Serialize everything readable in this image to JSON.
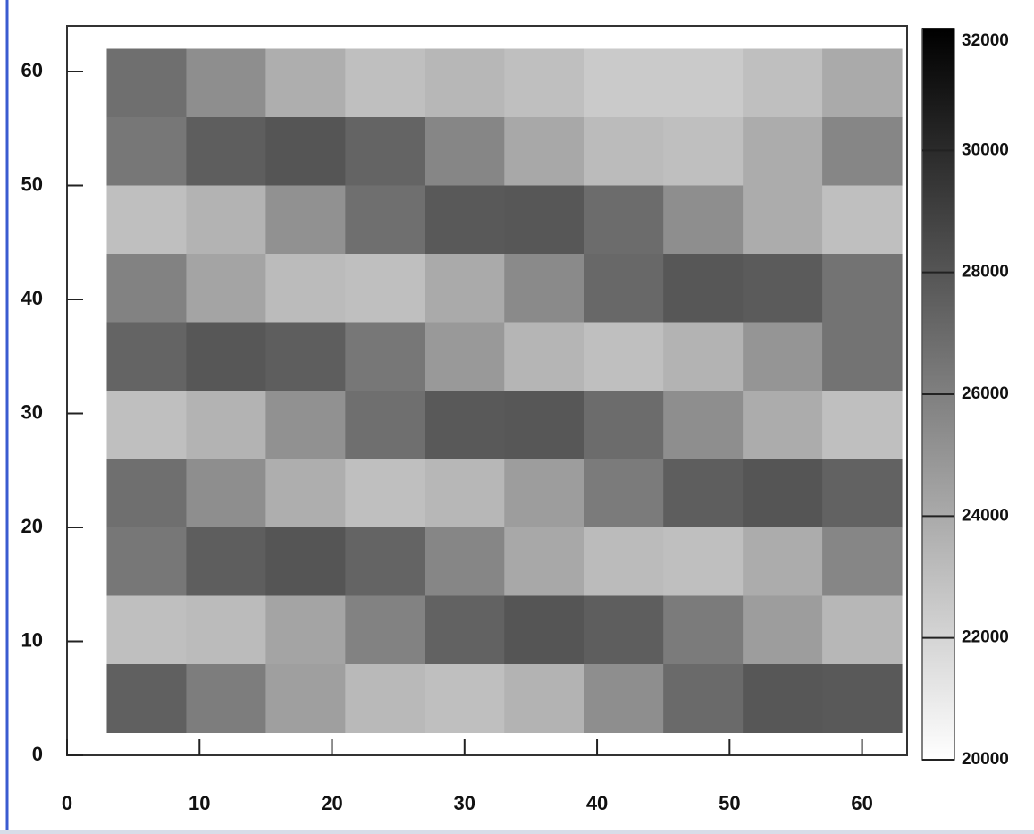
{
  "chart_data": {
    "type": "heatmap",
    "x": [
      6,
      12,
      18,
      24,
      30,
      36,
      42,
      48,
      54,
      60
    ],
    "y": [
      59,
      53,
      47,
      41,
      35,
      29,
      23,
      17,
      11,
      5
    ],
    "cell_size": 6,
    "values": [
      [
        26800,
        25300,
        23800,
        23000,
        23400,
        23000,
        22500,
        22500,
        23000,
        24000
      ],
      [
        26400,
        27600,
        28000,
        27300,
        25700,
        24100,
        23200,
        23000,
        23900,
        25700
      ],
      [
        23000,
        23600,
        25200,
        26800,
        27800,
        27900,
        26900,
        25300,
        23900,
        23000
      ],
      [
        25900,
        24300,
        23200,
        23000,
        24000,
        25500,
        27100,
        27900,
        27700,
        26600
      ],
      [
        27300,
        27900,
        27600,
        26400,
        24800,
        23500,
        23000,
        23600,
        25000,
        26600
      ],
      [
        23000,
        23600,
        25200,
        26800,
        27800,
        27900,
        26900,
        25300,
        23900,
        23000
      ],
      [
        26800,
        25300,
        23800,
        23000,
        23400,
        24600,
        26200,
        27600,
        28000,
        27400
      ],
      [
        26400,
        27600,
        28000,
        27300,
        25700,
        24100,
        23200,
        23000,
        23900,
        25700
      ],
      [
        23000,
        23200,
        24300,
        25900,
        27400,
        28000,
        27600,
        26200,
        24600,
        23400
      ],
      [
        27500,
        26100,
        24500,
        23300,
        23000,
        23600,
        25300,
        27000,
        27900,
        27800
      ]
    ],
    "xlim": [
      0,
      63.4
    ],
    "ylim": [
      0,
      64
    ],
    "xticks": [
      0,
      10,
      20,
      30,
      40,
      50,
      60
    ],
    "yticks": [
      0,
      10,
      20,
      30,
      40,
      50,
      60
    ],
    "color_range": [
      20000,
      32000
    ],
    "colorbar_ticks": [
      20000,
      22000,
      24000,
      26000,
      28000,
      30000,
      32000
    ],
    "colormap": "gray_reversed"
  }
}
